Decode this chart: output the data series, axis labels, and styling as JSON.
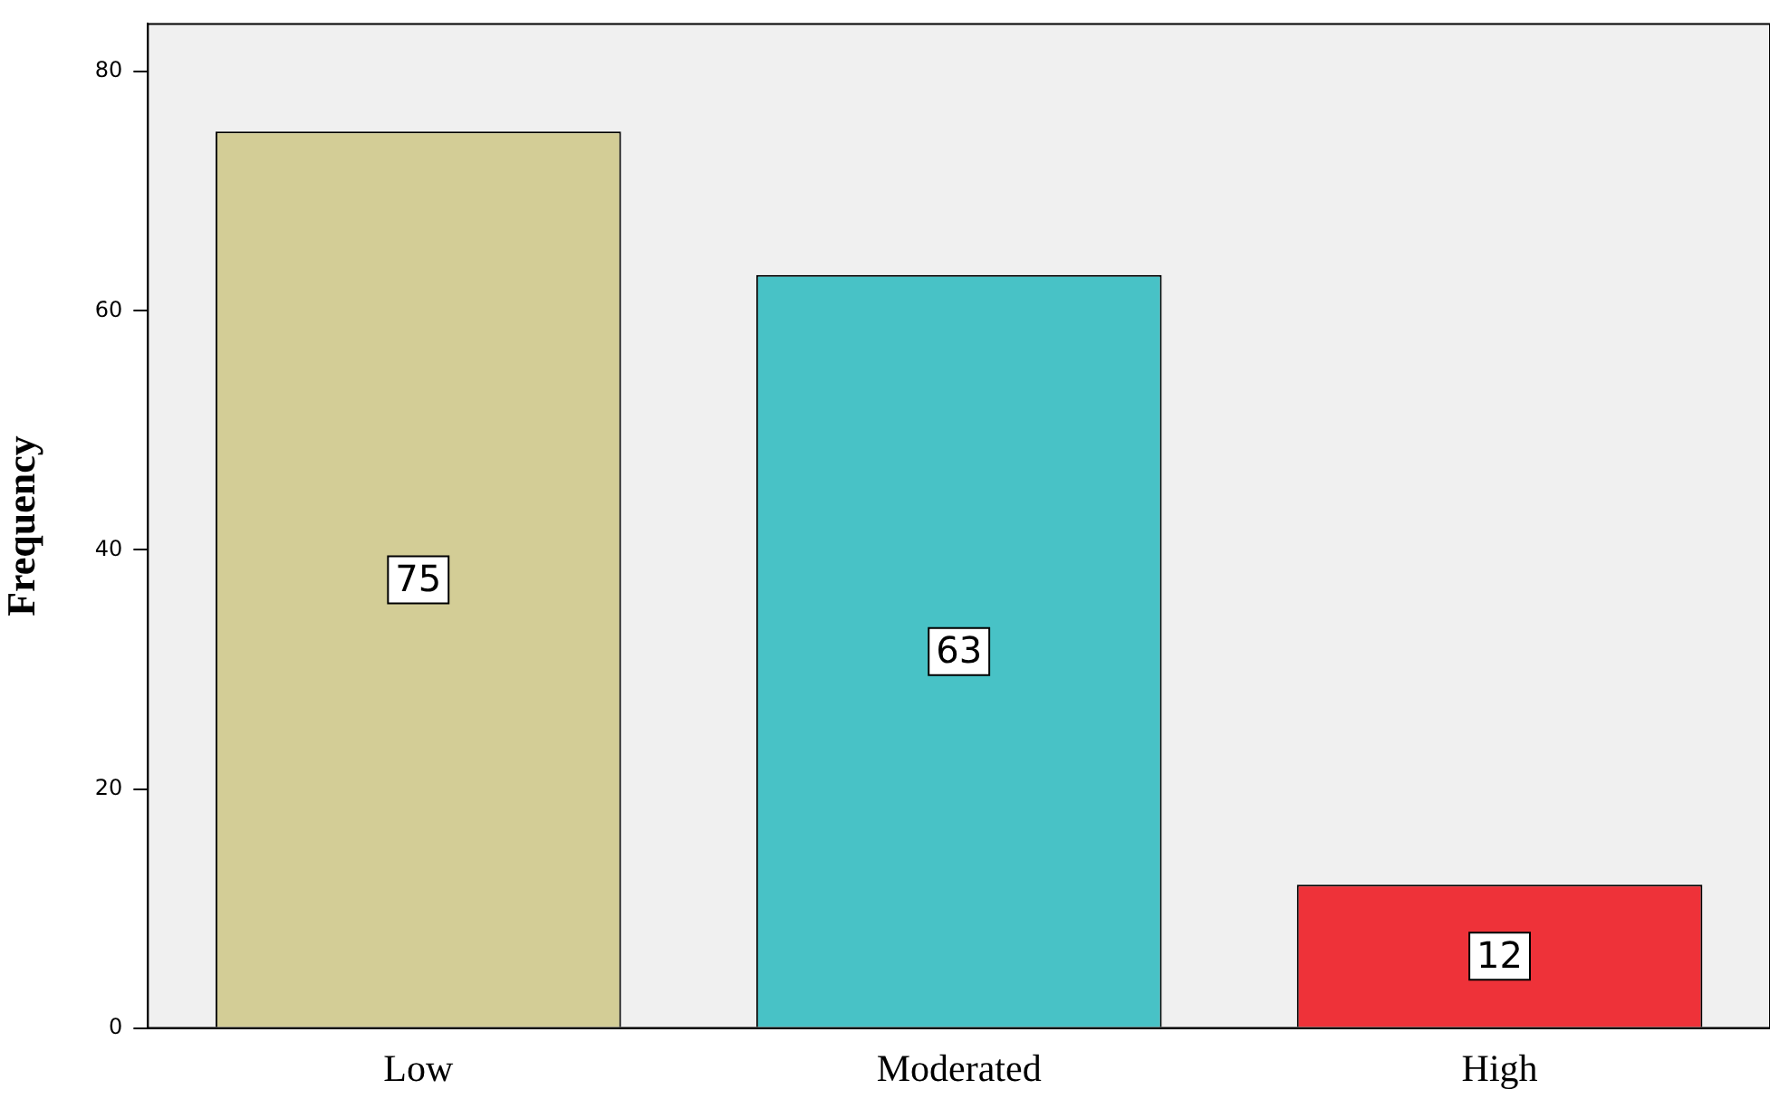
{
  "chart_data": {
    "type": "bar",
    "ylabel": "Frequency",
    "categories": [
      "Low",
      "Moderated",
      "High"
    ],
    "values": [
      75,
      63,
      12
    ],
    "colors": [
      "#d3cd96",
      "#48c2c6",
      "#ee3239"
    ],
    "ylim": [
      0,
      84
    ],
    "yticks": [
      0,
      20,
      40,
      60,
      80
    ],
    "grid": false,
    "legend": false,
    "data_labels": true
  }
}
